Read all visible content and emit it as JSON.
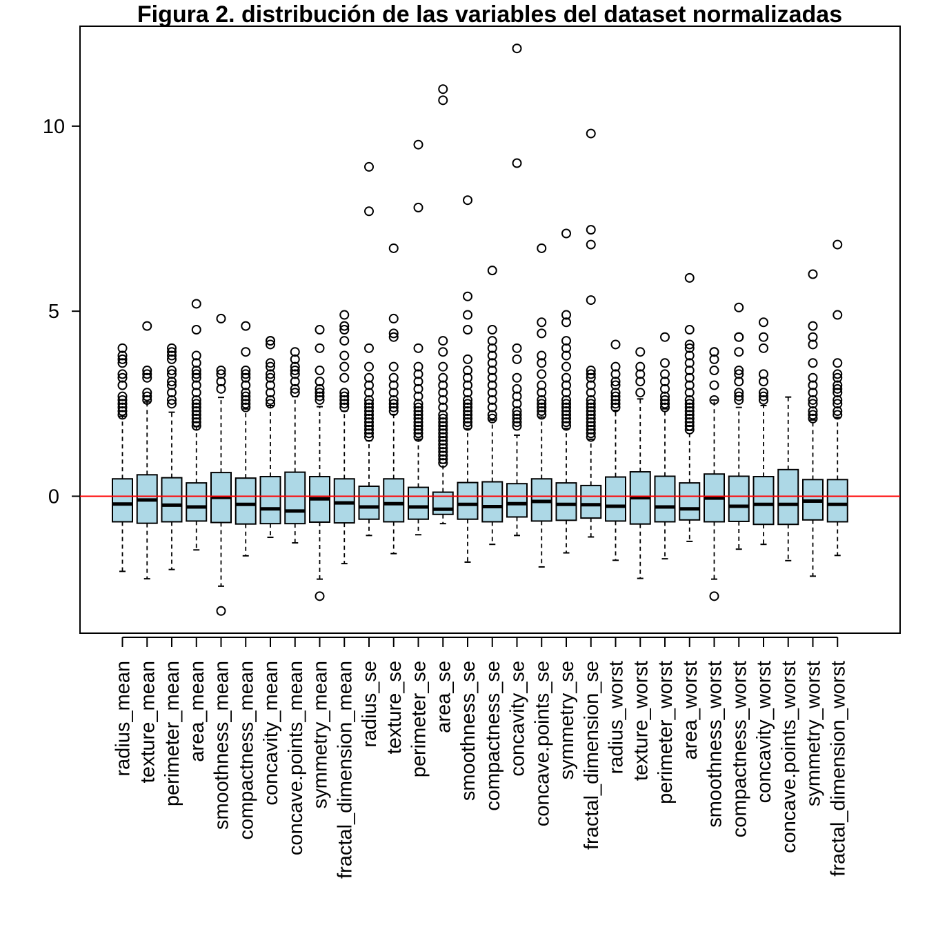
{
  "chart_data": {
    "type": "boxplot",
    "title": "Figura 2. distribución de las variables del dataset normalizadas",
    "xlabel": "",
    "ylabel": "",
    "ylim": [
      -3.7,
      12.7
    ],
    "yticks": [
      0,
      5,
      10
    ],
    "grid": false,
    "legend": "none",
    "box_fill": "#add8e6",
    "reference_line": {
      "y": 0,
      "color": "#ff0000"
    },
    "categories": [
      "radius_mean",
      "texture_mean",
      "perimeter_mean",
      "area_mean",
      "smoothness_mean",
      "compactness_mean",
      "concavity_mean",
      "concave.points_mean",
      "symmetry_mean",
      "fractal_dimension_mean",
      "radius_se",
      "texture_se",
      "perimeter_se",
      "area_se",
      "smoothness_se",
      "compactness_se",
      "concavity_se",
      "concave.points_se",
      "symmetry_se",
      "fractal_dimension_se",
      "radius_worst",
      "texture_worst",
      "perimeter_worst",
      "area_worst",
      "smoothness_worst",
      "compactness_worst",
      "concavity_worst",
      "concave.points_worst",
      "symmetry_worst",
      "fractal_dimension_worst"
    ],
    "boxes": [
      {
        "min": -2.03,
        "q1": -0.69,
        "median": -0.21,
        "q3": 0.47,
        "max": 2.16,
        "outliers": [
          2.2,
          2.3,
          2.4,
          2.5,
          2.6,
          2.7,
          3.0,
          3.2,
          3.3,
          3.6,
          3.7,
          3.8,
          4.0
        ]
      },
      {
        "min": -2.23,
        "q1": -0.73,
        "median": -0.1,
        "q3": 0.58,
        "max": 2.55,
        "outliers": [
          2.6,
          2.7,
          2.8,
          3.2,
          3.3,
          3.4,
          4.6
        ]
      },
      {
        "min": -1.98,
        "q1": -0.69,
        "median": -0.24,
        "q3": 0.5,
        "max": 2.27,
        "outliers": [
          2.5,
          2.6,
          2.8,
          3.0,
          3.1,
          3.3,
          3.4,
          3.7,
          3.8,
          3.9,
          4.0
        ]
      },
      {
        "min": -1.45,
        "q1": -0.67,
        "median": -0.29,
        "q3": 0.36,
        "max": 1.88,
        "outliers": [
          1.9,
          2.0,
          2.1,
          2.2,
          2.3,
          2.4,
          2.5,
          2.6,
          2.8,
          3.0,
          3.2,
          3.3,
          3.4,
          3.6,
          3.8,
          4.5,
          5.2
        ]
      },
      {
        "min": -2.43,
        "q1": -0.71,
        "median": -0.03,
        "q3": 0.64,
        "max": 2.67,
        "outliers": [
          -3.1,
          2.9,
          3.1,
          3.3,
          3.4,
          4.8
        ]
      },
      {
        "min": -1.61,
        "q1": -0.75,
        "median": -0.22,
        "q3": 0.49,
        "max": 2.36,
        "outliers": [
          2.4,
          2.5,
          2.6,
          2.7,
          2.8,
          3.0,
          3.2,
          3.3,
          3.4,
          3.9,
          4.6
        ]
      },
      {
        "min": -1.11,
        "q1": -0.74,
        "median": -0.34,
        "q3": 0.53,
        "max": 2.45,
        "outliers": [
          2.5,
          2.6,
          2.8,
          3.0,
          3.2,
          3.3,
          3.5,
          3.6,
          4.1,
          4.2,
          4.2
        ]
      },
      {
        "min": -1.26,
        "q1": -0.74,
        "median": -0.4,
        "q3": 0.65,
        "max": 2.69,
        "outliers": [
          2.8,
          2.9,
          3.1,
          3.3,
          3.4,
          3.5,
          3.7,
          3.9
        ]
      },
      {
        "min": -2.24,
        "q1": -0.7,
        "median": -0.07,
        "q3": 0.53,
        "max": 2.42,
        "outliers": [
          -2.7,
          2.6,
          2.7,
          2.8,
          2.9,
          3.1,
          3.4,
          4.0,
          4.5
        ]
      },
      {
        "min": -1.82,
        "q1": -0.72,
        "median": -0.18,
        "q3": 0.47,
        "max": 2.3,
        "outliers": [
          2.4,
          2.5,
          2.6,
          2.7,
          2.8,
          3.2,
          3.5,
          3.8,
          4.2,
          4.5,
          4.6,
          4.9
        ]
      },
      {
        "min": -1.06,
        "q1": -0.62,
        "median": -0.29,
        "q3": 0.27,
        "max": 1.5,
        "outliers": [
          1.6,
          1.7,
          1.8,
          1.9,
          2.0,
          2.1,
          2.2,
          2.3,
          2.4,
          2.5,
          2.6,
          2.8,
          3.0,
          3.2,
          3.5,
          4.0,
          7.7,
          8.9
        ]
      },
      {
        "min": -1.55,
        "q1": -0.69,
        "median": -0.2,
        "q3": 0.47,
        "max": 2.21,
        "outliers": [
          2.3,
          2.4,
          2.5,
          2.6,
          2.8,
          3.0,
          3.2,
          3.5,
          4.3,
          4.4,
          4.8,
          6.7
        ]
      },
      {
        "min": -1.04,
        "q1": -0.62,
        "median": -0.29,
        "q3": 0.24,
        "max": 1.54,
        "outliers": [
          1.6,
          1.7,
          1.8,
          1.9,
          2.0,
          2.1,
          2.2,
          2.3,
          2.4,
          2.5,
          2.7,
          2.9,
          3.1,
          3.3,
          3.5,
          4.0,
          7.8,
          9.5
        ]
      },
      {
        "min": -0.74,
        "q1": -0.49,
        "median": -0.35,
        "q3": 0.11,
        "max": 0.89,
        "outliers": [
          0.9,
          1.0,
          1.1,
          1.2,
          1.3,
          1.4,
          1.5,
          1.6,
          1.7,
          1.8,
          1.9,
          2.0,
          2.1,
          2.2,
          2.4,
          2.6,
          2.8,
          3.0,
          3.2,
          3.5,
          3.9,
          4.2,
          10.7,
          11.0
        ]
      },
      {
        "min": -1.78,
        "q1": -0.62,
        "median": -0.22,
        "q3": 0.37,
        "max": 1.82,
        "outliers": [
          1.9,
          2.0,
          2.1,
          2.2,
          2.3,
          2.4,
          2.5,
          2.6,
          2.8,
          3.0,
          3.2,
          3.4,
          3.7,
          4.5,
          4.9,
          5.4,
          8.0
        ]
      },
      {
        "min": -1.3,
        "q1": -0.69,
        "median": -0.28,
        "q3": 0.39,
        "max": 2.06,
        "outliers": [
          2.1,
          2.2,
          2.4,
          2.6,
          2.8,
          3.0,
          3.2,
          3.4,
          3.6,
          3.8,
          4.0,
          4.2,
          4.5,
          6.1
        ]
      },
      {
        "min": -1.06,
        "q1": -0.56,
        "median": -0.2,
        "q3": 0.34,
        "max": 1.65,
        "outliers": [
          1.9,
          2.0,
          2.1,
          2.2,
          2.3,
          2.5,
          2.7,
          2.9,
          3.2,
          3.7,
          4.0,
          9.0,
          12.1
        ]
      },
      {
        "min": -1.91,
        "q1": -0.67,
        "median": -0.14,
        "q3": 0.47,
        "max": 2.14,
        "outliers": [
          2.2,
          2.3,
          2.4,
          2.5,
          2.6,
          2.8,
          3.0,
          3.3,
          3.6,
          3.8,
          4.4,
          4.7,
          6.7
        ]
      },
      {
        "min": -1.53,
        "q1": -0.65,
        "median": -0.22,
        "q3": 0.36,
        "max": 1.83,
        "outliers": [
          1.9,
          2.0,
          2.1,
          2.2,
          2.3,
          2.4,
          2.5,
          2.6,
          2.8,
          3.0,
          3.2,
          3.5,
          3.8,
          4.0,
          4.2,
          4.7,
          4.9,
          7.1
        ]
      },
      {
        "min": -1.1,
        "q1": -0.59,
        "median": -0.23,
        "q3": 0.29,
        "max": 1.54,
        "outliers": [
          1.6,
          1.7,
          1.8,
          1.9,
          2.0,
          2.1,
          2.2,
          2.3,
          2.4,
          2.5,
          2.6,
          2.8,
          3.0,
          3.2,
          3.3,
          3.4,
          5.3,
          6.8,
          7.2,
          9.8
        ]
      },
      {
        "min": -1.73,
        "q1": -0.67,
        "median": -0.27,
        "q3": 0.52,
        "max": 2.32,
        "outliers": [
          2.4,
          2.5,
          2.6,
          2.7,
          2.8,
          3.0,
          3.1,
          3.3,
          3.5,
          4.1
        ]
      },
      {
        "min": -2.22,
        "q1": -0.75,
        "median": -0.04,
        "q3": 0.66,
        "max": 2.63,
        "outliers": [
          2.8,
          3.1,
          3.3,
          3.5,
          3.9
        ]
      },
      {
        "min": -1.69,
        "q1": -0.69,
        "median": -0.29,
        "q3": 0.54,
        "max": 2.36,
        "outliers": [
          2.4,
          2.5,
          2.6,
          2.7,
          2.9,
          3.1,
          3.3,
          3.6,
          4.3
        ]
      },
      {
        "min": -1.22,
        "q1": -0.64,
        "median": -0.34,
        "q3": 0.36,
        "max": 1.78,
        "outliers": [
          1.8,
          1.9,
          2.0,
          2.1,
          2.2,
          2.3,
          2.4,
          2.5,
          2.6,
          2.8,
          3.0,
          3.2,
          3.4,
          3.6,
          3.8,
          4.0,
          4.1,
          4.5,
          5.9
        ]
      },
      {
        "min": -2.24,
        "q1": -0.69,
        "median": -0.05,
        "q3": 0.6,
        "max": 2.6,
        "outliers": [
          -2.7,
          2.6,
          3.0,
          3.4,
          3.7,
          3.9,
          3.9
        ]
      },
      {
        "min": -1.43,
        "q1": -0.68,
        "median": -0.27,
        "q3": 0.54,
        "max": 2.4,
        "outliers": [
          2.6,
          2.7,
          2.8,
          3.1,
          3.3,
          3.4,
          3.9,
          4.3,
          4.3,
          5.1
        ]
      },
      {
        "min": -1.3,
        "q1": -0.76,
        "median": -0.22,
        "q3": 0.53,
        "max": 2.45,
        "outliers": [
          2.6,
          2.7,
          2.8,
          3.1,
          3.3,
          4.0,
          4.3,
          4.7
        ]
      },
      {
        "min": -1.74,
        "q1": -0.76,
        "median": -0.22,
        "q3": 0.72,
        "max": 2.68,
        "outliers": []
      },
      {
        "min": -2.16,
        "q1": -0.64,
        "median": -0.13,
        "q3": 0.45,
        "max": 2.06,
        "outliers": [
          2.1,
          2.2,
          2.3,
          2.5,
          2.6,
          2.8,
          3.0,
          3.2,
          3.6,
          4.1,
          4.3,
          4.6,
          6.0
        ]
      },
      {
        "min": -1.6,
        "q1": -0.69,
        "median": -0.22,
        "q3": 0.45,
        "max": 2.13,
        "outliers": [
          2.2,
          2.3,
          2.5,
          2.6,
          2.8,
          2.9,
          3.0,
          3.2,
          3.3,
          3.6,
          4.9,
          6.8
        ]
      }
    ]
  }
}
